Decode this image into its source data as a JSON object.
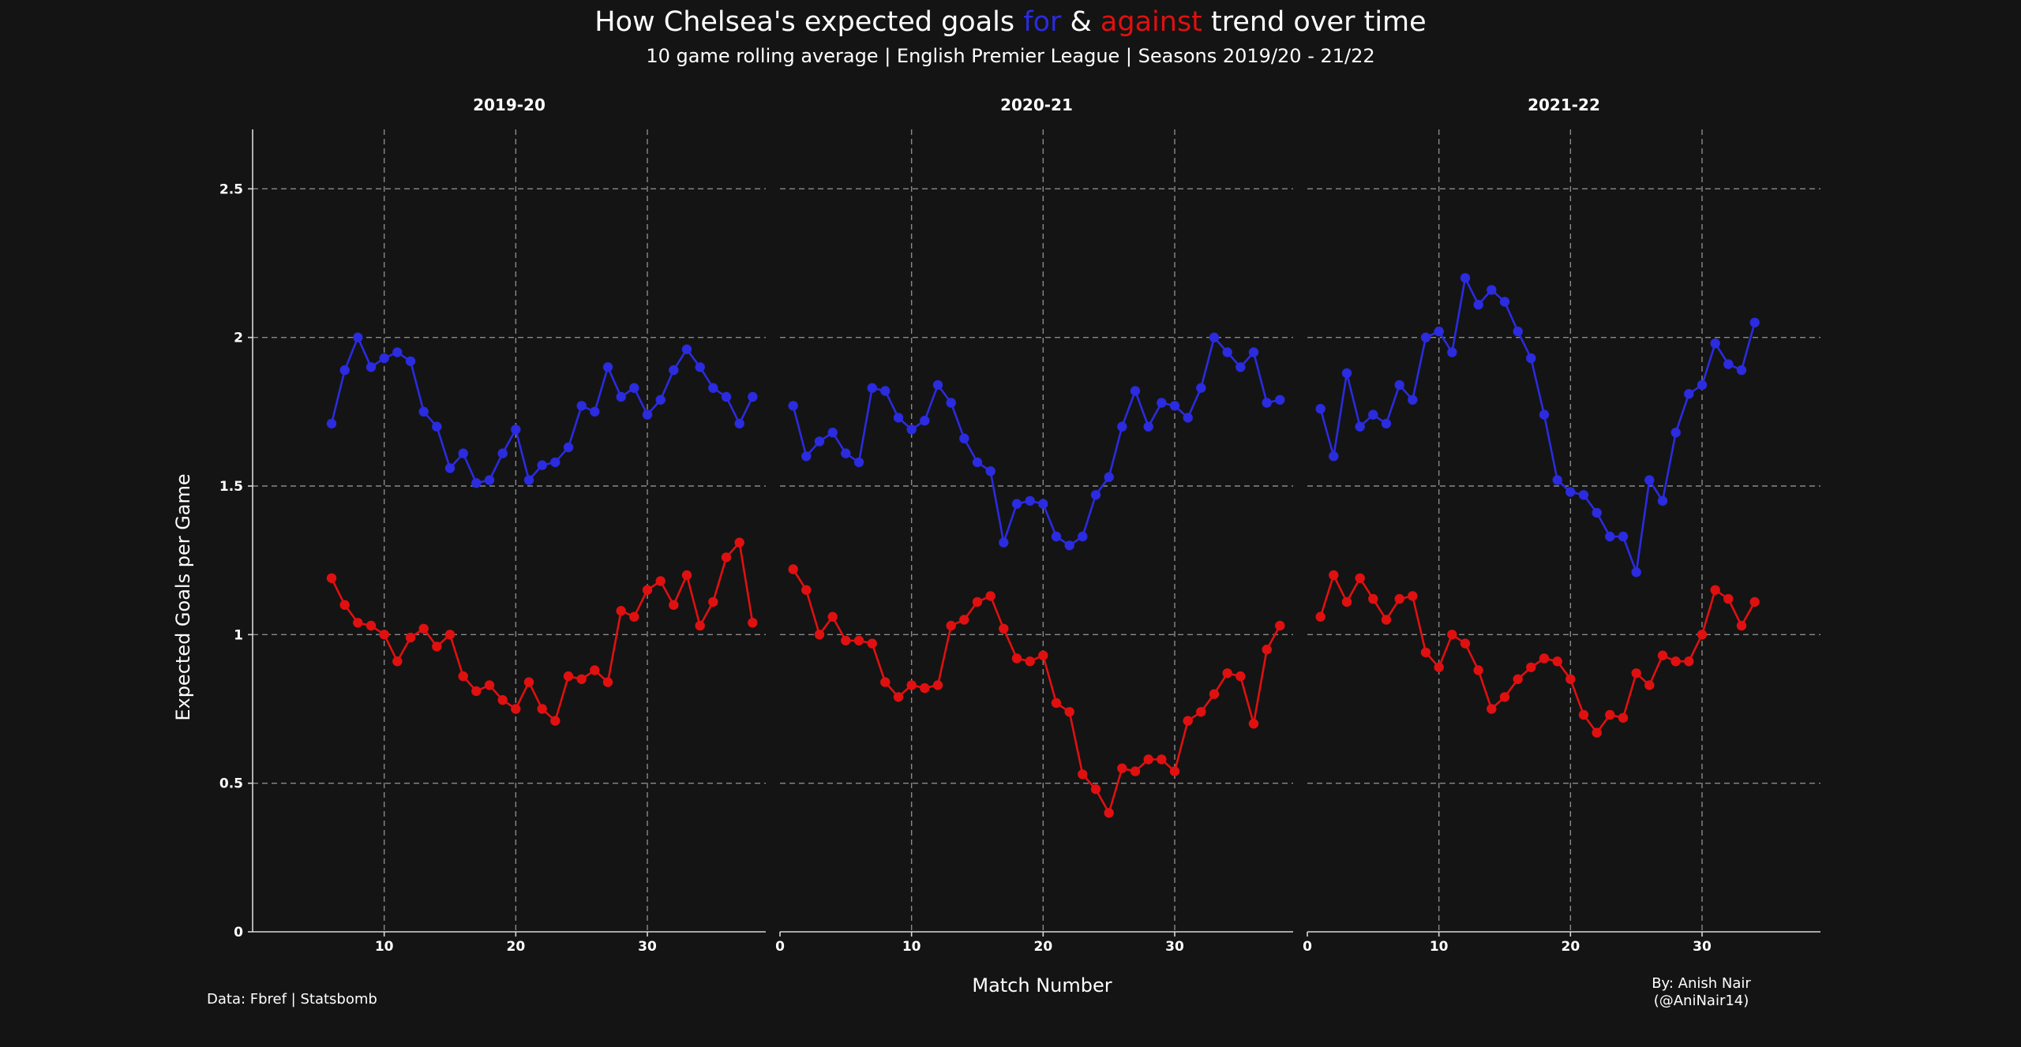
{
  "title": {
    "part1": "How Chelsea's expected goals ",
    "for_word": "for",
    "part2": " & ",
    "against_word": "against",
    "part3": " trend over time"
  },
  "subtitle": "10 game rolling average | English Premier League | Seasons 2019/20 - 21/22",
  "source_text": "Data: Fbref | Statsbomb",
  "credit_line1": "By: Anish Nair",
  "credit_line2": "(@AniNair14)",
  "colors": {
    "background": "#141414",
    "for": "#2b2be0",
    "against": "#e01010",
    "text": "#ffffff",
    "grid": "#8a8a8a"
  },
  "chart_data": {
    "type": "line",
    "xlabel": "Match Number",
    "ylabel": "Expected Goals per Game",
    "ylim": [
      0,
      2.7
    ],
    "yticks": [
      0,
      0.5,
      1,
      1.5,
      2,
      2.5
    ],
    "ytick_labels": [
      "0",
      "0.5",
      "1",
      "1.5",
      "2",
      "2.5"
    ],
    "grid": true,
    "panels": [
      {
        "title": "2019-20",
        "xlim": [
          0,
          39
        ],
        "xticks": [
          10,
          20,
          30
        ],
        "xtick_labels": [
          "10",
          "20",
          "30"
        ],
        "x": [
          6,
          7,
          8,
          9,
          10,
          11,
          12,
          13,
          14,
          15,
          16,
          17,
          18,
          19,
          20,
          21,
          22,
          23,
          24,
          25,
          26,
          27,
          28,
          29,
          30,
          31,
          32,
          33,
          34,
          35,
          36,
          37,
          38
        ],
        "series": [
          {
            "values": [
              1.71,
              1.89,
              2.0,
              1.9,
              1.93,
              1.95,
              1.92,
              1.75,
              1.7,
              1.56,
              1.61,
              1.51,
              1.52,
              1.61,
              1.69,
              1.52,
              1.57,
              1.58,
              1.63,
              1.77,
              1.75,
              1.9,
              1.8,
              1.83,
              1.74,
              1.79,
              1.89,
              1.96,
              1.9,
              1.83,
              1.8,
              1.71,
              1.8
            ]
          },
          {
            "values": [
              1.19,
              1.1,
              1.04,
              1.03,
              1.0,
              0.91,
              0.99,
              1.02,
              0.96,
              1.0,
              0.86,
              0.81,
              0.83,
              0.78,
              0.75,
              0.84,
              0.75,
              0.71,
              0.86,
              0.85,
              0.88,
              0.84,
              1.08,
              1.06,
              1.15,
              1.18,
              1.1,
              1.2,
              1.03,
              1.11,
              1.26,
              1.31,
              1.04
            ]
          }
        ]
      },
      {
        "title": "2020-21",
        "xlim": [
          0,
          39
        ],
        "xticks": [
          0,
          10,
          20,
          30
        ],
        "xtick_labels": [
          "0",
          "10",
          "20",
          "30"
        ],
        "x": [
          1,
          2,
          3,
          4,
          5,
          6,
          7,
          8,
          9,
          10,
          11,
          12,
          13,
          14,
          15,
          16,
          17,
          18,
          19,
          20,
          21,
          22,
          23,
          24,
          25,
          26,
          27,
          28,
          29,
          30,
          31,
          32,
          33,
          34,
          35,
          36,
          37,
          38
        ],
        "series": [
          {
            "values": [
              1.77,
              1.6,
              1.65,
              1.68,
              1.61,
              1.58,
              1.83,
              1.82,
              1.73,
              1.69,
              1.72,
              1.84,
              1.78,
              1.66,
              1.58,
              1.55,
              1.31,
              1.44,
              1.45,
              1.44,
              1.33,
              1.3,
              1.33,
              1.47,
              1.53,
              1.7,
              1.82,
              1.7,
              1.78,
              1.77,
              1.73,
              1.83,
              2.0,
              1.95,
              1.9,
              1.95,
              1.78,
              1.79
            ]
          },
          {
            "values": [
              1.22,
              1.15,
              1.0,
              1.06,
              0.98,
              0.98,
              0.97,
              0.84,
              0.79,
              0.83,
              0.82,
              0.83,
              1.03,
              1.05,
              1.11,
              1.13,
              1.02,
              0.92,
              0.91,
              0.93,
              0.77,
              0.74,
              0.53,
              0.48,
              0.4,
              0.55,
              0.54,
              0.58,
              0.58,
              0.54,
              0.71,
              0.74,
              0.8,
              0.87,
              0.86,
              0.7,
              0.95,
              1.03
            ]
          }
        ]
      },
      {
        "title": "2021-22",
        "xlim": [
          0,
          39
        ],
        "xticks": [
          0,
          10,
          20,
          30
        ],
        "xtick_labels": [
          "0",
          "10",
          "20",
          "30"
        ],
        "x": [
          1,
          2,
          3,
          4,
          5,
          6,
          7,
          8,
          9,
          10,
          11,
          12,
          13,
          14,
          15,
          16,
          17,
          18,
          19,
          20,
          21,
          22,
          23,
          24,
          25,
          26,
          27,
          28,
          29,
          30,
          31,
          32,
          33,
          34
        ],
        "series": [
          {
            "values": [
              1.76,
              1.6,
              1.88,
              1.7,
              1.74,
              1.71,
              1.84,
              1.79,
              2.0,
              2.02,
              1.95,
              2.2,
              2.11,
              2.16,
              2.12,
              2.02,
              1.93,
              1.74,
              1.52,
              1.48,
              1.47,
              1.41,
              1.33,
              1.33,
              1.21,
              1.52,
              1.45,
              1.68,
              1.81,
              1.84,
              1.98,
              1.91,
              1.89,
              2.05
            ]
          },
          {
            "values": [
              1.06,
              1.2,
              1.11,
              1.19,
              1.12,
              1.05,
              1.12,
              1.13,
              0.94,
              0.89,
              1.0,
              0.97,
              0.88,
              0.75,
              0.79,
              0.85,
              0.89,
              0.92,
              0.91,
              0.85,
              0.73,
              0.67,
              0.73,
              0.72,
              0.87,
              0.83,
              0.93,
              0.91,
              0.91,
              1.0,
              1.15,
              1.12,
              1.03,
              1.11
            ]
          }
        ]
      }
    ]
  }
}
